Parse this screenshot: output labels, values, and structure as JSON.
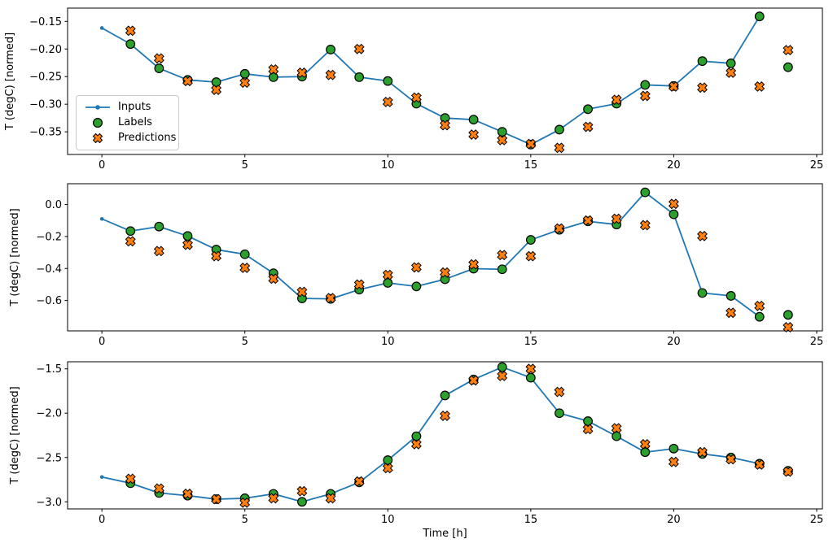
{
  "figure": {
    "xlabel": "Time [h]",
    "ylabel": "T (degC) [normed]",
    "x_ticks": [
      0,
      5,
      10,
      15,
      20,
      25
    ],
    "x_tick_labels": [
      "0",
      "5",
      "10",
      "15",
      "20",
      "25"
    ],
    "xlim": [
      -1.2,
      25.2
    ],
    "background": "#ffffff",
    "spine_color": "#000000",
    "colors": {
      "inputs": "#1f77b4",
      "labels": "#2ca02c",
      "predictions": "#ff7f0e",
      "marker_edge": "#000000"
    }
  },
  "legend": {
    "items": [
      {
        "label": "Inputs",
        "icon": "line-dot-icon",
        "color": "#1f77b4"
      },
      {
        "label": "Labels",
        "icon": "circle-icon",
        "color": "#2ca02c"
      },
      {
        "label": "Predictions",
        "icon": "x-marker-icon",
        "color": "#ff7f0e"
      }
    ]
  },
  "chart_data": [
    {
      "type": "line",
      "name": "subplot-top",
      "ylabel": "T (degC) [normed]",
      "ylim": [
        -0.391,
        -0.126
      ],
      "y_ticks": [
        -0.15,
        -0.2,
        -0.25,
        -0.3,
        -0.35
      ],
      "y_tick_labels": [
        "−0.15",
        "−0.20",
        "−0.25",
        "−0.30",
        "−0.35"
      ],
      "series": [
        {
          "name": "Inputs",
          "type": "line",
          "marker": "dot",
          "x": [
            0,
            1,
            2,
            3,
            4,
            5,
            6,
            7,
            8,
            9,
            10,
            11,
            12,
            13,
            14,
            15,
            16,
            17,
            18,
            19,
            20,
            21,
            22,
            23
          ],
          "y": [
            -0.162,
            -0.191,
            -0.235,
            -0.256,
            -0.26,
            -0.245,
            -0.251,
            -0.25,
            -0.201,
            -0.251,
            -0.258,
            -0.299,
            -0.325,
            -0.328,
            -0.35,
            -0.373,
            -0.346,
            -0.309,
            -0.299,
            -0.265,
            -0.267,
            -0.222,
            -0.226,
            -0.141
          ]
        },
        {
          "name": "Labels",
          "type": "scatter",
          "marker": "circle",
          "x": [
            1,
            2,
            3,
            4,
            5,
            6,
            7,
            8,
            9,
            10,
            11,
            12,
            13,
            14,
            15,
            16,
            17,
            18,
            19,
            20,
            21,
            22,
            23,
            24
          ],
          "y": [
            -0.191,
            -0.235,
            -0.256,
            -0.26,
            -0.245,
            -0.251,
            -0.25,
            -0.201,
            -0.251,
            -0.258,
            -0.299,
            -0.325,
            -0.328,
            -0.35,
            -0.373,
            -0.346,
            -0.309,
            -0.299,
            -0.265,
            -0.267,
            -0.222,
            -0.226,
            -0.141,
            -0.233
          ]
        },
        {
          "name": "Predictions",
          "type": "scatter",
          "marker": "X",
          "x": [
            1,
            2,
            3,
            4,
            5,
            6,
            7,
            8,
            9,
            10,
            11,
            12,
            13,
            14,
            15,
            16,
            17,
            18,
            19,
            20,
            21,
            22,
            23,
            24
          ],
          "y": [
            -0.167,
            -0.217,
            -0.258,
            -0.274,
            -0.261,
            -0.237,
            -0.243,
            -0.247,
            -0.2,
            -0.296,
            -0.288,
            -0.338,
            -0.355,
            -0.365,
            -0.372,
            -0.379,
            -0.341,
            -0.292,
            -0.285,
            -0.268,
            -0.27,
            -0.243,
            -0.268,
            -0.202
          ]
        }
      ]
    },
    {
      "type": "line",
      "name": "subplot-middle",
      "ylabel": "T (degC) [normed]",
      "ylim": [
        -0.79,
        0.13
      ],
      "y_ticks": [
        0.0,
        -0.2,
        -0.4,
        -0.6
      ],
      "y_tick_labels": [
        "0.0",
        "−0.2",
        "−0.4",
        "−0.6"
      ],
      "series": [
        {
          "name": "Inputs",
          "type": "line",
          "marker": "dot",
          "x": [
            0,
            1,
            2,
            3,
            4,
            5,
            6,
            7,
            8,
            9,
            10,
            11,
            12,
            13,
            14,
            15,
            16,
            17,
            18,
            19,
            20,
            21,
            22,
            23
          ],
          "y": [
            -0.09,
            -0.166,
            -0.138,
            -0.197,
            -0.282,
            -0.311,
            -0.43,
            -0.587,
            -0.59,
            -0.532,
            -0.49,
            -0.512,
            -0.467,
            -0.401,
            -0.405,
            -0.221,
            -0.158,
            -0.105,
            -0.125,
            0.076,
            -0.061,
            -0.553,
            -0.571,
            -0.702
          ]
        },
        {
          "name": "Labels",
          "type": "scatter",
          "marker": "circle",
          "x": [
            1,
            2,
            3,
            4,
            5,
            6,
            7,
            8,
            9,
            10,
            11,
            12,
            13,
            14,
            15,
            16,
            17,
            18,
            19,
            20,
            21,
            22,
            23,
            24
          ],
          "y": [
            -0.166,
            -0.138,
            -0.197,
            -0.282,
            -0.311,
            -0.43,
            -0.587,
            -0.59,
            -0.532,
            -0.49,
            -0.512,
            -0.467,
            -0.401,
            -0.405,
            -0.221,
            -0.158,
            -0.105,
            -0.125,
            0.076,
            -0.061,
            -0.553,
            -0.571,
            -0.702,
            -0.69
          ]
        },
        {
          "name": "Predictions",
          "type": "scatter",
          "marker": "X",
          "x": [
            1,
            2,
            3,
            4,
            5,
            6,
            7,
            8,
            9,
            10,
            11,
            12,
            13,
            14,
            15,
            16,
            17,
            18,
            19,
            20,
            21,
            22,
            23,
            24
          ],
          "y": [
            -0.23,
            -0.291,
            -0.252,
            -0.323,
            -0.396,
            -0.464,
            -0.546,
            -0.585,
            -0.5,
            -0.44,
            -0.393,
            -0.425,
            -0.374,
            -0.316,
            -0.323,
            -0.15,
            -0.1,
            -0.089,
            -0.129,
            0.004,
            -0.197,
            -0.677,
            -0.634,
            -0.767
          ]
        }
      ]
    },
    {
      "type": "line",
      "name": "subplot-bottom",
      "ylabel": "T (degC) [normed]",
      "ylim": [
        -3.08,
        -1.42
      ],
      "y_ticks": [
        -1.5,
        -2.0,
        -2.5,
        -3.0
      ],
      "y_tick_labels": [
        "−1.5",
        "−2.0",
        "−2.5",
        "−3.0"
      ],
      "series": [
        {
          "name": "Inputs",
          "type": "line",
          "marker": "dot",
          "x": [
            0,
            1,
            2,
            3,
            4,
            5,
            6,
            7,
            8,
            9,
            10,
            11,
            12,
            13,
            14,
            15,
            16,
            17,
            18,
            19,
            20,
            21,
            22,
            23
          ],
          "y": [
            -2.72,
            -2.79,
            -2.9,
            -2.93,
            -2.97,
            -2.96,
            -2.91,
            -3.0,
            -2.91,
            -2.78,
            -2.53,
            -2.26,
            -1.8,
            -1.62,
            -1.48,
            -1.6,
            -2.0,
            -2.09,
            -2.26,
            -2.44,
            -2.4,
            -2.46,
            -2.5,
            -2.57
          ]
        },
        {
          "name": "Labels",
          "type": "scatter",
          "marker": "circle",
          "x": [
            1,
            2,
            3,
            4,
            5,
            6,
            7,
            8,
            9,
            10,
            11,
            12,
            13,
            14,
            15,
            16,
            17,
            18,
            19,
            20,
            21,
            22,
            23,
            24
          ],
          "y": [
            -2.79,
            -2.9,
            -2.93,
            -2.97,
            -2.96,
            -2.91,
            -3.0,
            -2.91,
            -2.78,
            -2.53,
            -2.26,
            -1.8,
            -1.62,
            -1.48,
            -1.6,
            -2.0,
            -2.09,
            -2.26,
            -2.44,
            -2.4,
            -2.46,
            -2.5,
            -2.57,
            -2.65
          ]
        },
        {
          "name": "Predictions",
          "type": "scatter",
          "marker": "X",
          "x": [
            1,
            2,
            3,
            4,
            5,
            6,
            7,
            8,
            9,
            10,
            11,
            12,
            13,
            14,
            15,
            16,
            17,
            18,
            19,
            20,
            21,
            22,
            23,
            24
          ],
          "y": [
            -2.74,
            -2.85,
            -2.91,
            -2.97,
            -3.01,
            -2.96,
            -2.88,
            -2.96,
            -2.77,
            -2.62,
            -2.35,
            -2.03,
            -1.63,
            -1.58,
            -1.5,
            -1.76,
            -2.18,
            -2.17,
            -2.35,
            -2.55,
            -2.44,
            -2.52,
            -2.58,
            -2.66
          ]
        }
      ]
    }
  ]
}
